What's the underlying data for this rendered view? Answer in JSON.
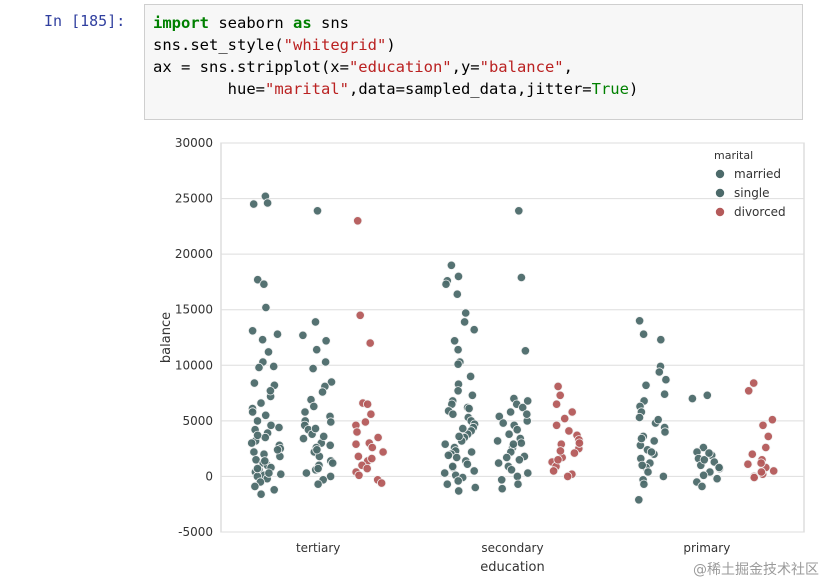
{
  "notebook": {
    "prompt": "In [185]:",
    "code_lines": [
      [
        {
          "t": "import",
          "c": "kw"
        },
        {
          "t": " seaborn "
        },
        {
          "t": "as",
          "c": "kw"
        },
        {
          "t": " sns"
        }
      ],
      [
        {
          "t": "sns.set_style("
        },
        {
          "t": "\"whitegrid\"",
          "c": "str"
        },
        {
          "t": ")"
        }
      ],
      [
        {
          "t": "ax = sns.stripplot(x="
        },
        {
          "t": "\"education\"",
          "c": "str"
        },
        {
          "t": ",y="
        },
        {
          "t": "\"balance\"",
          "c": "str"
        },
        {
          "t": ","
        }
      ],
      [
        {
          "t": "        hue="
        },
        {
          "t": "\"marital\"",
          "c": "str"
        },
        {
          "t": ",data=sampled_data,jitter="
        },
        {
          "t": "True",
          "c": "kv"
        },
        {
          "t": ")"
        }
      ]
    ]
  },
  "watermark": "@稀土掘金技术社区",
  "chart_data": {
    "type": "scatter",
    "subtype": "stripplot",
    "title": "",
    "xlabel": "education",
    "ylabel": "balance",
    "categories": [
      "tertiary",
      "secondary",
      "primary"
    ],
    "ylim": [
      -5000,
      30000
    ],
    "yticks": [
      -5000,
      0,
      5000,
      10000,
      15000,
      20000,
      25000,
      30000
    ],
    "grid": true,
    "legend": {
      "title": "marital",
      "placement": "top-right"
    },
    "series": [
      {
        "name": "married",
        "color": "#4c6a6a",
        "offset": -0.27,
        "points": {
          "tertiary": [
            25200,
            24600,
            24500,
            17700,
            17300,
            15200,
            13100,
            12800,
            11200,
            10300,
            9800,
            8200,
            7200,
            6100,
            5500,
            5000,
            4600,
            4200,
            3900,
            3500,
            3200,
            3000,
            2800,
            2500,
            2200,
            2000,
            1800,
            1500,
            1200,
            1000,
            800,
            600,
            400,
            200,
            100,
            0,
            -200,
            -500,
            -900,
            -1200,
            -1600,
            6600,
            5800,
            4400,
            3700,
            2400,
            1400,
            700,
            300,
            12300,
            9900,
            7700,
            8400
          ],
          "secondary": [
            19000,
            18000,
            17600,
            17300,
            16400,
            14700,
            13900,
            13200,
            12200,
            11400,
            10300,
            10100,
            9000,
            8300,
            7700,
            6800,
            6500,
            6200,
            5900,
            5600,
            5300,
            5000,
            4700,
            4400,
            4100,
            3800,
            3500,
            3200,
            2900,
            2600,
            2300,
            2000,
            1700,
            1400,
            1100,
            800,
            500,
            300,
            100,
            -100,
            -400,
            -700,
            -1000,
            -1300,
            2200,
            4300,
            3600,
            1900,
            6100,
            7300,
            900
          ],
          "primary": [
            14000,
            12800,
            12300,
            9900,
            9400,
            8700,
            8200,
            7400,
            6800,
            6300,
            5800,
            5300,
            4800,
            4400,
            4000,
            3600,
            3200,
            2800,
            2400,
            2000,
            1600,
            1200,
            800,
            400,
            0,
            -300,
            -700,
            -2100,
            5100,
            3400,
            2200,
            1000
          ]
        }
      },
      {
        "name": "single",
        "color": "#4c6a6a",
        "offset": 0.0,
        "points": {
          "tertiary": [
            23900,
            13900,
            12700,
            12200,
            11400,
            10300,
            9700,
            8500,
            8100,
            7600,
            6900,
            6300,
            5800,
            5400,
            5000,
            4600,
            4200,
            3800,
            3400,
            3000,
            2600,
            2200,
            1800,
            1400,
            1000,
            600,
            300,
            0,
            -300,
            -700,
            4900,
            3600,
            2400,
            1200,
            2800,
            4300,
            700
          ],
          "secondary": [
            23900,
            17900,
            11300,
            7000,
            6800,
            6500,
            6200,
            5800,
            5400,
            5000,
            4600,
            4200,
            3800,
            3400,
            3000,
            2600,
            2200,
            1800,
            1500,
            1200,
            900,
            600,
            300,
            0,
            -300,
            -700,
            -1100,
            4800,
            2900,
            1700,
            3200,
            5600
          ],
          "primary": [
            7300,
            7000,
            2600,
            2200,
            1900,
            1600,
            1300,
            1000,
            700,
            400,
            100,
            -200,
            -500,
            -900,
            1500,
            800,
            2100
          ]
        }
      },
      {
        "name": "divorced",
        "color": "#b45a5a",
        "offset": 0.27,
        "points": {
          "tertiary": [
            23000,
            14500,
            12000,
            6600,
            6500,
            5600,
            4900,
            4600,
            4000,
            3500,
            3000,
            2600,
            2200,
            1800,
            1400,
            1000,
            700,
            400,
            100,
            -300,
            -600,
            2900,
            1600
          ],
          "secondary": [
            8100,
            7300,
            6500,
            5800,
            5200,
            4600,
            4100,
            3700,
            3300,
            2900,
            2500,
            2100,
            1700,
            1300,
            900,
            500,
            200,
            0,
            3000,
            1500,
            2300
          ],
          "primary": [
            8400,
            7700,
            5100,
            4600,
            3600,
            2600,
            2000,
            1500,
            1100,
            800,
            500,
            200,
            0,
            -100,
            1200,
            400
          ]
        }
      }
    ]
  }
}
